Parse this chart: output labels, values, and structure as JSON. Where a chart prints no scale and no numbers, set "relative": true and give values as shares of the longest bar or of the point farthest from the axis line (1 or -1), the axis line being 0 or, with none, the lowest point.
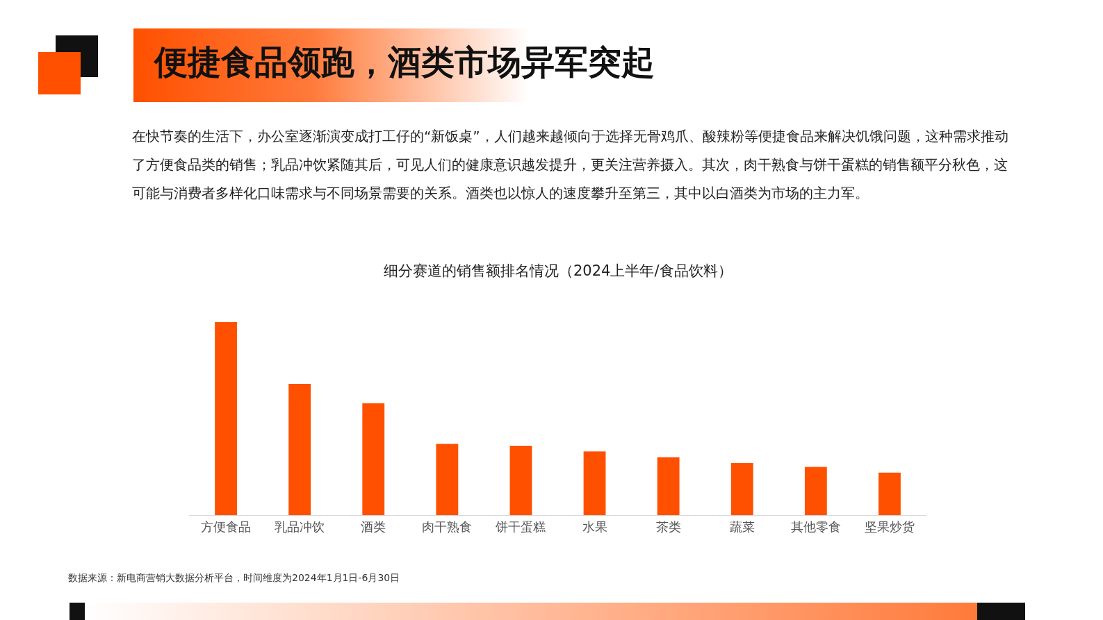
{
  "chart_data": {
    "type": "bar",
    "title": "便捷食品领跑，酒类市场异军突起",
    "subtitle": "在快节奏的生活下，办公室逐渐演变成打工仔的“新饭桌”，人们越来越倾向于选择无骨鸡爪、酸辣粉等便捷食品来解决饥饿问题，这种需求推动了方便食品类的销售；乳品冲饮紧随其后，可见人们的健康意识越发提升，更关注营养摄入。其次，肉干熟食与饼干蛋糕的销售额平分秋色，这可能与消费者多样化口味需求与不同场景需要的关系。酒类也以惊人的速度攀升至第三，其中以白酒类为市场的主力军。",
    "annotations": [
      "细分赛道的销售额排名情况（2024上半年/食品饮料）",
      "数据来源：新电商营销大数据分析平台，时间维度为2024年1月1日-6月30日"
    ],
    "categories": [
      "方便食品",
      "乳品冲饮",
      "酒类",
      "肉干熟食",
      "饼干蛋糕",
      "水果",
      "茶类",
      "蔬菜",
      "其他零食",
      "坚果炒货"
    ],
    "values": [
      1,
      0.68,
      0.58,
      0.37,
      0.36,
      0.33,
      0.3,
      0.27,
      0.25,
      0.22
    ],
    "color": "#ff5000",
    "relative": true,
    "grid": false,
    "legend": false
  }
}
